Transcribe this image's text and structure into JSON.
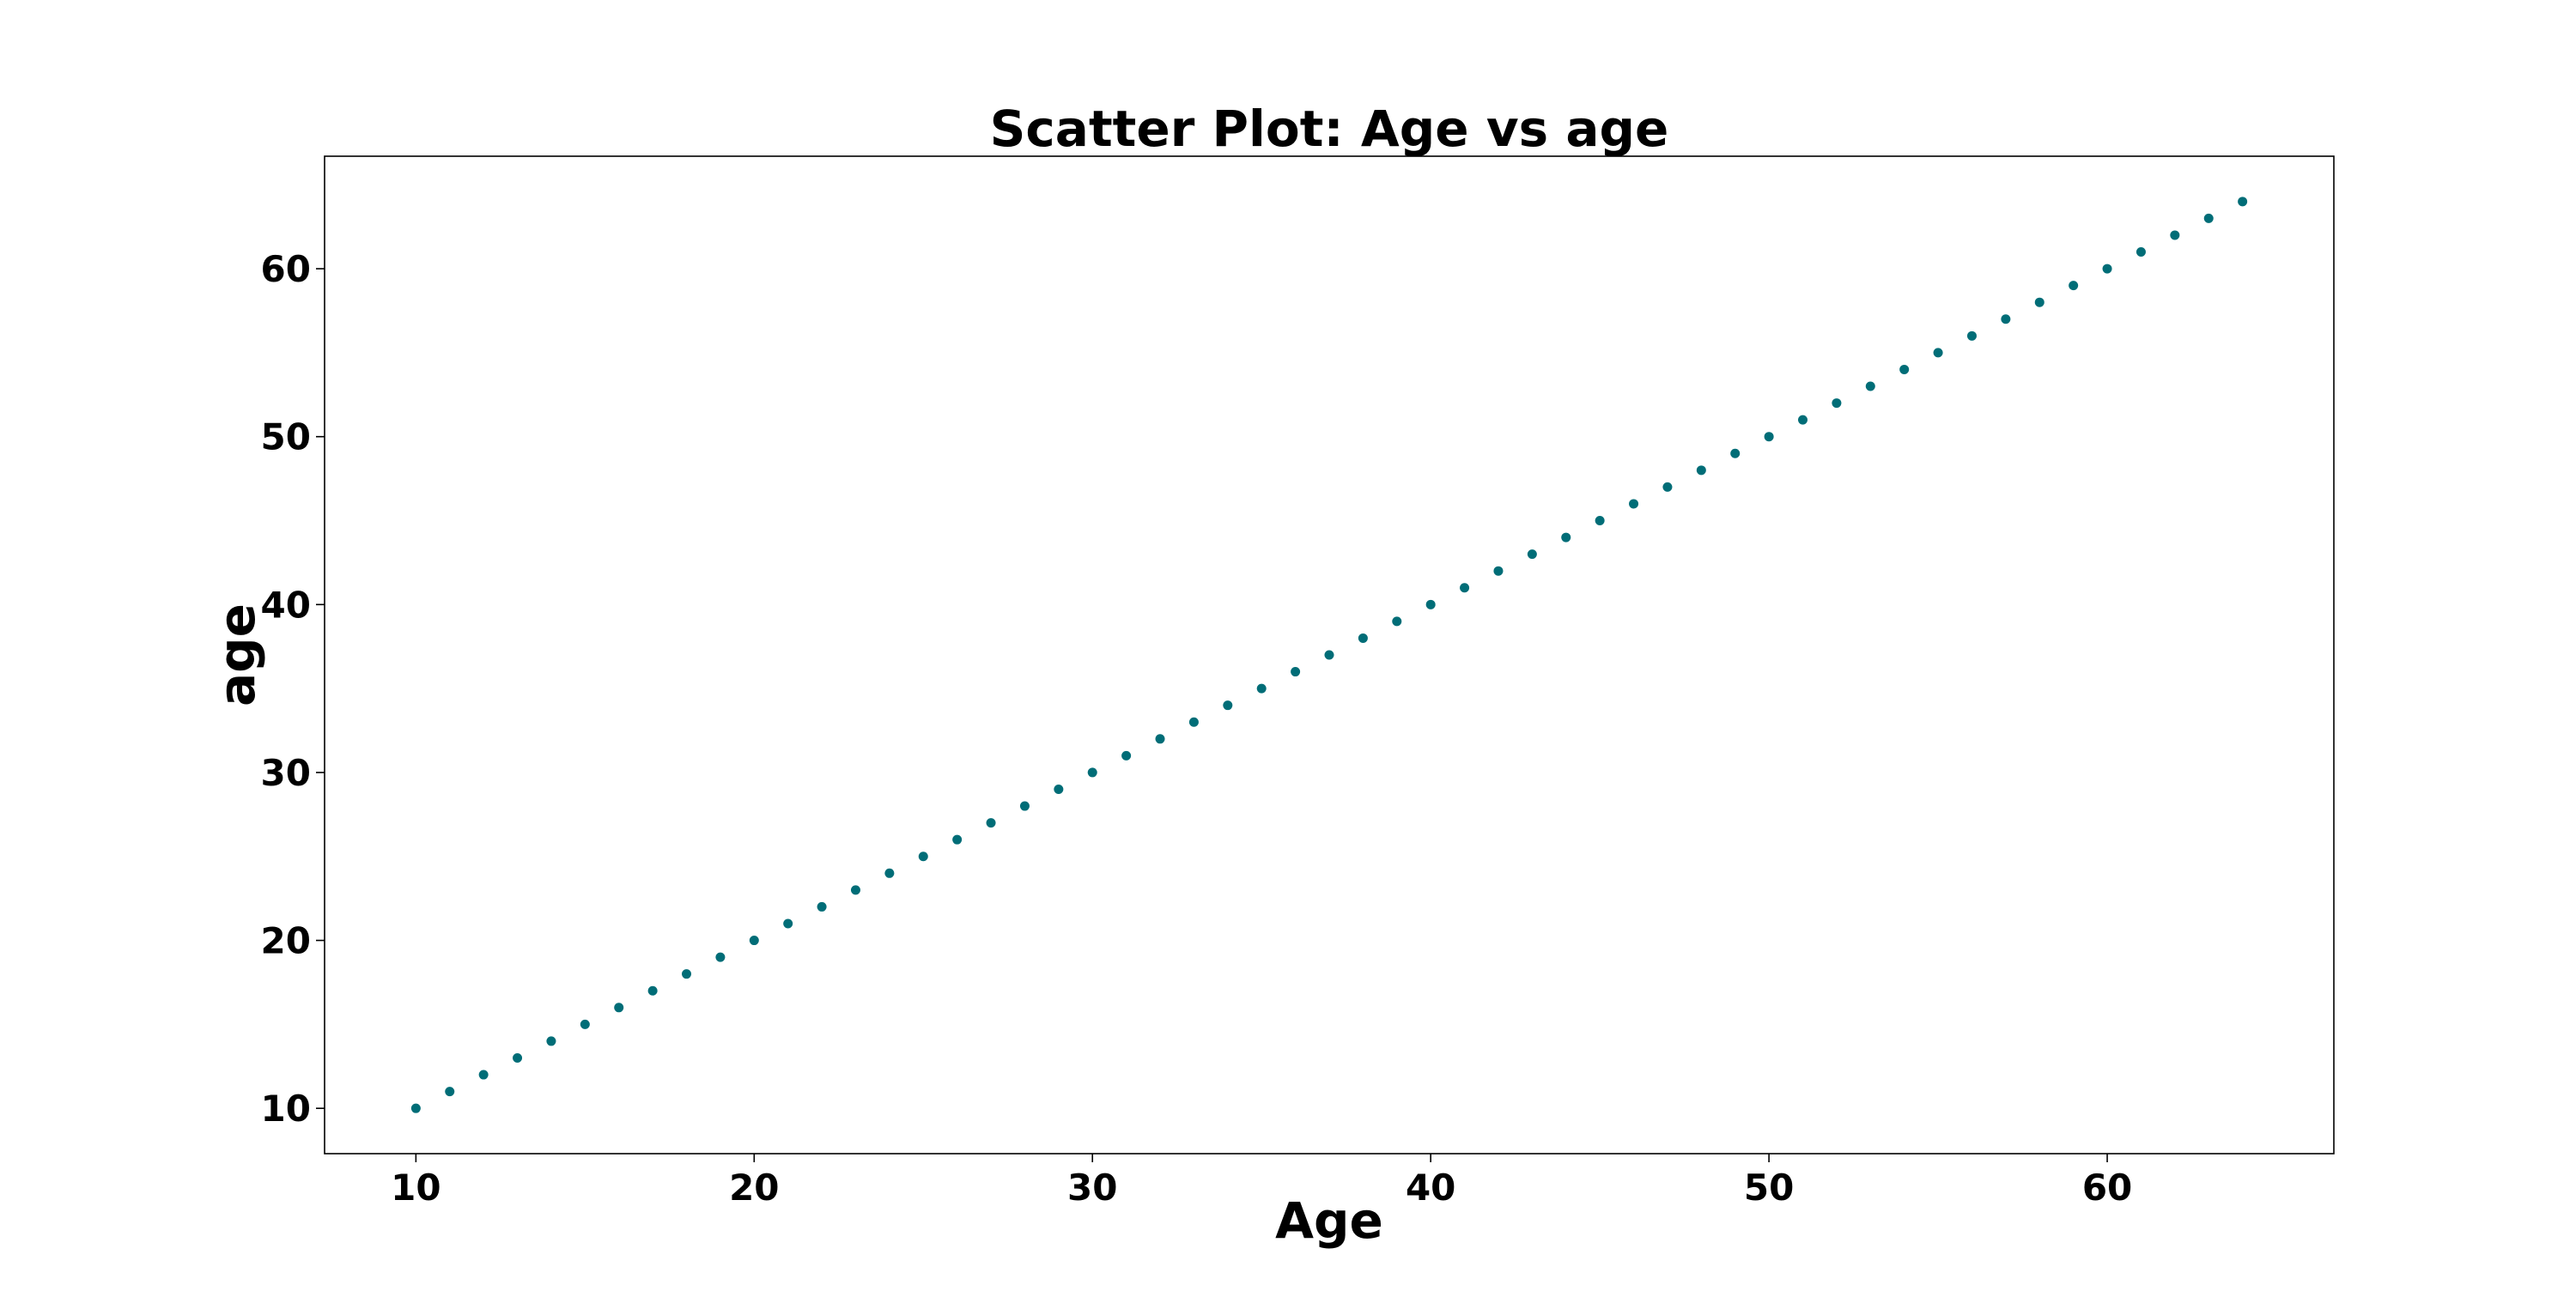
{
  "chart_data": {
    "type": "scatter",
    "title": "Scatter Plot: Age vs age",
    "xlabel": "Age",
    "ylabel": "age",
    "xlim": [
      7.3,
      66.7
    ],
    "ylim": [
      7.3,
      66.7
    ],
    "xticks": [
      10,
      20,
      30,
      40,
      50,
      60
    ],
    "yticks": [
      10,
      20,
      30,
      40,
      50,
      60
    ],
    "grid": false,
    "legend": "none",
    "marker_color": "#006d77",
    "series": [
      {
        "x": [
          10,
          11,
          12,
          13,
          14,
          15,
          16,
          17,
          18,
          19,
          20,
          21,
          22,
          23,
          24,
          25,
          26,
          27,
          28,
          29,
          30,
          31,
          32,
          33,
          34,
          35,
          36,
          37,
          38,
          39,
          40,
          41,
          42,
          43,
          44,
          45,
          46,
          47,
          48,
          49,
          50,
          51,
          52,
          53,
          54,
          55,
          56,
          57,
          58,
          59,
          60,
          61,
          62,
          63,
          64
        ],
        "y": [
          10,
          11,
          12,
          13,
          14,
          15,
          16,
          17,
          18,
          19,
          20,
          21,
          22,
          23,
          24,
          25,
          26,
          27,
          28,
          29,
          30,
          31,
          32,
          33,
          34,
          35,
          36,
          37,
          38,
          39,
          40,
          41,
          42,
          43,
          44,
          45,
          46,
          47,
          48,
          49,
          50,
          51,
          52,
          53,
          54,
          55,
          56,
          57,
          58,
          59,
          60,
          61,
          62,
          63,
          64
        ]
      }
    ]
  }
}
